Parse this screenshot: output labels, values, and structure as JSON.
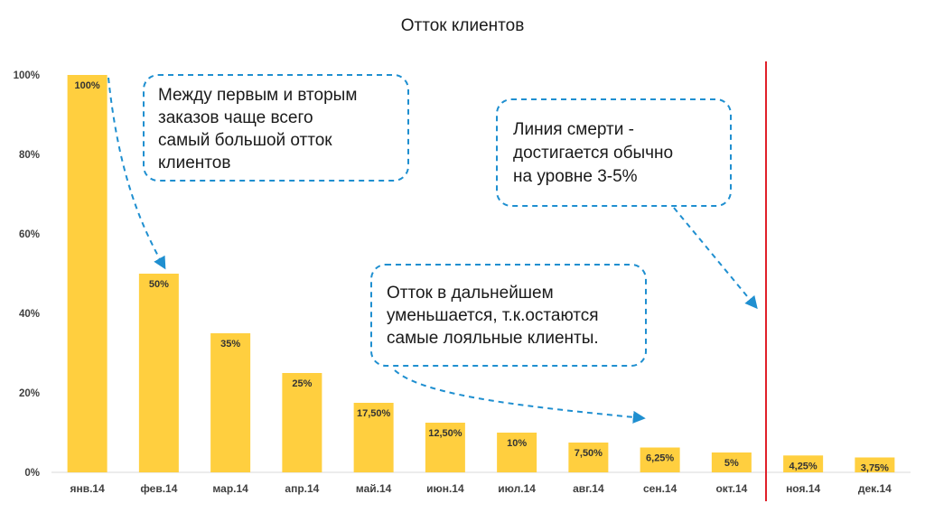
{
  "chart_data": {
    "type": "bar",
    "title": "Отток клиентов",
    "categories": [
      "янв.14",
      "фев.14",
      "мар.14",
      "апр.14",
      "май.14",
      "июн.14",
      "июл.14",
      "авг.14",
      "сен.14",
      "окт.14",
      "ноя.14",
      "дек.14"
    ],
    "values": [
      100,
      50,
      35,
      25,
      17.5,
      12.5,
      10,
      7.5,
      6.25,
      5,
      4.25,
      3.75
    ],
    "data_labels": [
      "100%",
      "50%",
      "35%",
      "25%",
      "17,50%",
      "12,50%",
      "10%",
      "7,50%",
      "6,25%",
      "5%",
      "4,25%",
      "3,75%"
    ],
    "ylim": [
      0,
      100
    ],
    "yticks": [
      "0%",
      "20%",
      "40%",
      "60%",
      "80%",
      "100%"
    ],
    "bar_color": "#ffcf3f",
    "death_line_color": "#e0202a",
    "annotation_color": "#1f8fd0",
    "grid": false,
    "legend": "none"
  },
  "annotations": {
    "first_second": [
      "Между первым и вторым",
      "заказов чаще всего",
      "самый большой отток",
      "клиентов"
    ],
    "death_line": [
      "Линия смерти -",
      "достигается обычно",
      "на уровне 3-5%"
    ],
    "further": [
      "Отток в дальнейшем",
      "уменьшается, т.к.остаются",
      "самые лояльные клиенты."
    ]
  }
}
